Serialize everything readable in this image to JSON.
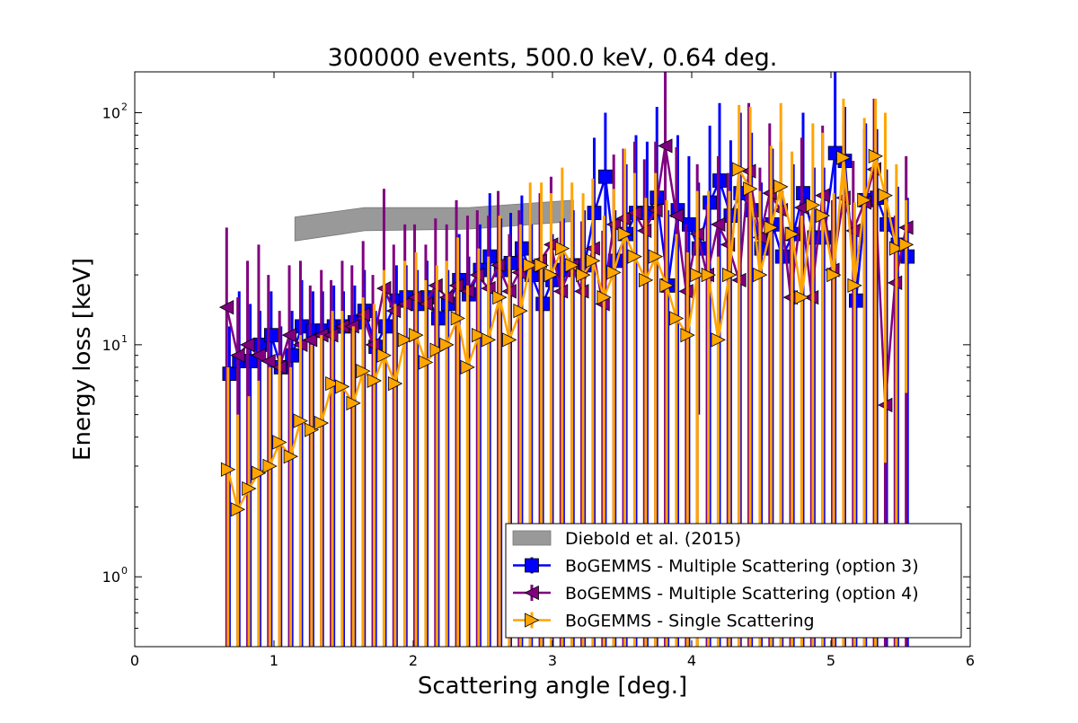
{
  "chart_data": {
    "type": "scatter",
    "title": "300000 events, 500.0 keV, 0.64 deg.",
    "xlabel": "Scattering angle [deg.]",
    "ylabel": "Energy loss [keV]",
    "xlim": [
      0,
      6
    ],
    "ylim": [
      0.5,
      150
    ],
    "yscale": "log",
    "x_ticks": [
      0,
      1,
      2,
      3,
      4,
      5,
      6
    ],
    "x_tick_labels": [
      "0",
      "1",
      "2",
      "3",
      "4",
      "5",
      "6"
    ],
    "y_ticks": [
      1,
      10,
      100
    ],
    "y_tick_labels": [
      "10",
      "10",
      "10"
    ],
    "y_tick_exponents": [
      "0",
      "1",
      "2"
    ],
    "legend_position": "lower-right",
    "band": {
      "name": "Diebold et al. (2015)",
      "color": "#999999",
      "x": [
        1.15,
        1.65,
        2.4,
        3.15
      ],
      "upper": [
        35.5,
        39.0,
        39.0,
        42.0
      ],
      "lower": [
        28.0,
        31.0,
        31.5,
        34.0
      ]
    },
    "series": [
      {
        "name": "BoGEMMS - Multiple Scattering (option 3)",
        "color": "#0000ff",
        "marker": "square",
        "x": [
          0.68,
          0.75,
          0.83,
          0.9,
          0.98,
          1.05,
          1.13,
          1.2,
          1.28,
          1.35,
          1.43,
          1.5,
          1.58,
          1.65,
          1.73,
          1.8,
          1.88,
          1.95,
          2.03,
          2.1,
          2.18,
          2.25,
          2.33,
          2.4,
          2.48,
          2.55,
          2.63,
          2.7,
          2.78,
          2.85,
          2.93,
          3.0,
          3.08,
          3.15,
          3.23,
          3.3,
          3.38,
          3.45,
          3.53,
          3.6,
          3.68,
          3.75,
          3.83,
          3.9,
          3.98,
          4.05,
          4.13,
          4.2,
          4.28,
          4.35,
          4.43,
          4.5,
          4.58,
          4.65,
          4.73,
          4.8,
          4.88,
          4.95,
          5.03,
          5.1,
          5.18,
          5.25,
          5.33,
          5.4,
          5.48,
          5.55
        ],
        "y": [
          7.5,
          8.5,
          8.5,
          10,
          11,
          8,
          9,
          12,
          11.5,
          11.5,
          12,
          12,
          12.5,
          14,
          9.8,
          12,
          15.5,
          16,
          15,
          16,
          13,
          15,
          19,
          16.5,
          21,
          24,
          21,
          22.5,
          26,
          20,
          15,
          19,
          21,
          22,
          22,
          37,
          53,
          23,
          30,
          37,
          37,
          43,
          18,
          38,
          33,
          26,
          41,
          51,
          36,
          45,
          38,
          26,
          33,
          24,
          30,
          45,
          29,
          29,
          67,
          62,
          15.5,
          42,
          43,
          33,
          27,
          24
        ],
        "upper": [
          12,
          17,
          15,
          14,
          17,
          12,
          14,
          19,
          17,
          17,
          18,
          17,
          18,
          21,
          14,
          17,
          22,
          22,
          21,
          23,
          18,
          21,
          30,
          24,
          33,
          45,
          35,
          37,
          44,
          33,
          22,
          30,
          35,
          38,
          38,
          78,
          100,
          38,
          60,
          80,
          75,
          106,
          38,
          80,
          65,
          50,
          88,
          110,
          76,
          100,
          82,
          50,
          70,
          46,
          60,
          100,
          58,
          58,
          150,
          106,
          30,
          90,
          85,
          57,
          48,
          43
        ],
        "lower": [
          0.5,
          0.5,
          0.5,
          0.5,
          0.5,
          0.5,
          0.5,
          0.5,
          0.5,
          0.5,
          0.5,
          0.5,
          0.5,
          0.5,
          0.5,
          0.5,
          0.5,
          0.5,
          0.5,
          0.5,
          0.5,
          0.5,
          0.5,
          0.5,
          0.5,
          0.5,
          0.5,
          0.5,
          0.5,
          0.5,
          0.5,
          0.5,
          0.5,
          0.5,
          0.5,
          0.5,
          0.5,
          0.5,
          0.5,
          0.5,
          0.5,
          0.5,
          0.5,
          0.5,
          0.5,
          5.0,
          0.5,
          0.5,
          0.5,
          0.5,
          0.5,
          0.5,
          0.5,
          0.5,
          0.5,
          0.5,
          0.5,
          0.5,
          0.5,
          0.5,
          0.5,
          0.5,
          0.5,
          0.5,
          0.5,
          0.5
        ]
      },
      {
        "name": "BoGEMMS - Multiple Scattering (option 4)",
        "color": "#800080",
        "marker": "triangle-left",
        "x": [
          0.66,
          0.74,
          0.81,
          0.89,
          0.96,
          1.04,
          1.11,
          1.19,
          1.26,
          1.34,
          1.41,
          1.49,
          1.56,
          1.64,
          1.71,
          1.79,
          1.86,
          1.94,
          2.01,
          2.09,
          2.16,
          2.24,
          2.31,
          2.39,
          2.46,
          2.54,
          2.61,
          2.69,
          2.76,
          2.84,
          2.91,
          2.99,
          3.06,
          3.14,
          3.21,
          3.29,
          3.36,
          3.44,
          3.51,
          3.59,
          3.66,
          3.74,
          3.81,
          3.89,
          3.96,
          4.04,
          4.11,
          4.19,
          4.26,
          4.34,
          4.41,
          4.49,
          4.56,
          4.64,
          4.71,
          4.79,
          4.86,
          4.94,
          5.01,
          5.09,
          5.16,
          5.24,
          5.31,
          5.39,
          5.46,
          5.54
        ],
        "y": [
          14.5,
          9,
          10,
          9,
          8.5,
          8,
          11,
          10,
          10.5,
          11,
          11,
          12,
          12,
          13.5,
          10,
          17.5,
          14,
          15,
          16,
          15,
          18,
          16,
          18,
          17,
          20,
          17.5,
          22,
          17,
          20.5,
          22,
          23,
          27,
          17,
          22,
          17,
          26,
          15,
          33,
          35,
          37,
          31,
          38,
          72,
          36,
          17,
          30,
          20,
          33,
          27,
          19,
          56,
          29,
          45,
          38,
          16,
          39,
          16,
          44,
          21,
          43,
          31,
          41,
          57,
          5.5,
          18.5,
          32
        ],
        "upper": [
          32,
          16,
          23,
          27,
          20,
          14,
          22,
          23,
          18,
          21,
          19,
          23,
          22,
          28,
          20,
          47,
          27,
          33,
          33,
          27,
          35,
          33,
          42,
          36,
          38,
          36,
          46,
          30,
          38,
          40,
          45,
          53,
          34,
          42,
          34,
          52,
          31,
          66,
          70,
          75,
          63,
          75,
          150,
          71,
          33,
          60,
          40,
          65,
          55,
          40,
          110,
          58,
          90,
          75,
          32,
          78,
          30,
          88,
          42,
          90,
          62,
          85,
          115,
          30,
          36,
          65
        ],
        "lower": [
          0.5,
          0.5,
          0.5,
          0.5,
          0.5,
          0.5,
          0.5,
          0.5,
          0.5,
          0.5,
          0.5,
          0.5,
          0.5,
          0.5,
          0.5,
          0.5,
          0.5,
          0.5,
          0.5,
          0.5,
          0.5,
          0.5,
          0.5,
          0.5,
          0.5,
          0.5,
          0.5,
          0.5,
          0.5,
          0.5,
          0.5,
          0.5,
          0.5,
          0.5,
          0.5,
          0.5,
          0.5,
          0.5,
          0.5,
          0.5,
          0.5,
          0.5,
          0.5,
          0.5,
          0.5,
          0.5,
          0.5,
          0.5,
          0.5,
          0.5,
          0.5,
          0.5,
          0.5,
          0.5,
          0.5,
          0.5,
          0.5,
          0.5,
          0.5,
          0.5,
          0.5,
          0.5,
          0.5,
          0.5,
          0.5,
          0.5
        ]
      },
      {
        "name": "BoGEMMS - Single Scattering",
        "color": "#ffa500",
        "marker": "triangle-right",
        "x": [
          0.67,
          0.74,
          0.82,
          0.89,
          0.97,
          1.04,
          1.12,
          1.19,
          1.27,
          1.34,
          1.42,
          1.49,
          1.57,
          1.64,
          1.72,
          1.79,
          1.87,
          1.94,
          2.02,
          2.09,
          2.17,
          2.24,
          2.32,
          2.39,
          2.47,
          2.54,
          2.62,
          2.69,
          2.77,
          2.84,
          2.92,
          2.99,
          3.07,
          3.14,
          3.22,
          3.29,
          3.37,
          3.44,
          3.52,
          3.59,
          3.67,
          3.74,
          3.82,
          3.89,
          3.97,
          4.04,
          4.12,
          4.19,
          4.27,
          4.34,
          4.42,
          4.49,
          4.57,
          4.64,
          4.72,
          4.79,
          4.87,
          4.94,
          5.02,
          5.09,
          5.17,
          5.24,
          5.32,
          5.39,
          5.47,
          5.54
        ],
        "y": [
          2.9,
          1.95,
          2.4,
          2.8,
          3.0,
          3.8,
          3.3,
          4.7,
          4.3,
          4.6,
          6.8,
          6.6,
          5.6,
          7.7,
          7.0,
          9.0,
          6.8,
          10.5,
          11,
          8.4,
          9.5,
          10,
          13,
          8,
          11,
          10.5,
          16,
          10.5,
          14,
          22,
          22,
          20,
          26,
          22,
          20,
          23,
          16,
          20.5,
          30,
          24,
          19,
          24,
          18,
          13,
          11,
          20,
          20,
          10.5,
          20,
          57,
          47,
          20,
          32,
          48,
          30,
          16,
          40,
          36,
          20,
          64,
          18,
          42,
          65,
          44,
          26,
          27
        ],
        "upper": [
          8,
          5,
          6,
          7,
          8,
          9,
          8,
          11,
          10,
          11,
          14,
          14,
          12,
          16,
          15,
          21,
          15,
          23,
          25,
          19,
          22,
          23,
          29,
          18,
          26,
          24,
          36,
          24,
          33,
          50,
          50,
          45,
          58,
          50,
          45,
          52,
          36,
          47,
          70,
          55,
          43,
          55,
          42,
          30,
          25,
          46,
          46,
          24,
          46,
          108,
          106,
          46,
          72,
          110,
          68,
          36,
          90,
          82,
          45,
          115,
          41,
          95,
          115,
          100,
          60,
          42
        ],
        "lower": [
          0.5,
          0.5,
          0.5,
          0.5,
          0.5,
          0.5,
          0.5,
          0.5,
          0.5,
          0.5,
          0.5,
          0.5,
          0.5,
          0.5,
          0.5,
          0.5,
          0.5,
          0.5,
          0.5,
          0.5,
          0.5,
          0.5,
          0.5,
          0.5,
          0.5,
          0.5,
          0.5,
          0.5,
          0.5,
          0.5,
          0.5,
          0.5,
          0.5,
          0.5,
          0.5,
          0.5,
          0.5,
          0.5,
          0.5,
          0.5,
          0.5,
          0.5,
          0.5,
          0.5,
          0.5,
          0.5,
          0.5,
          0.5,
          0.5,
          0.5,
          0.5,
          0.5,
          0.5,
          0.5,
          0.5,
          0.5,
          0.5,
          0.5,
          0.5,
          0.5,
          0.5,
          0.5,
          0.5,
          3.1,
          0.5,
          6.2
        ]
      }
    ]
  }
}
